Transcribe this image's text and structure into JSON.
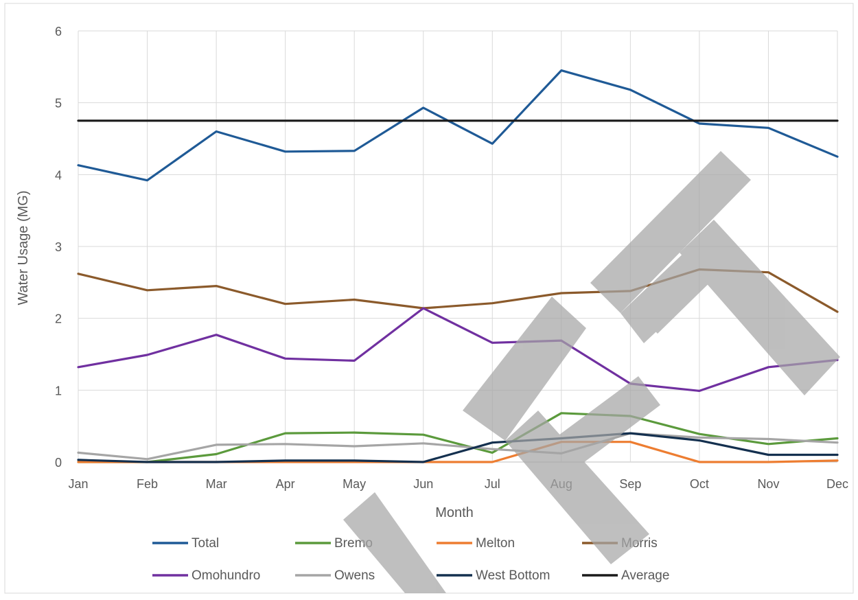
{
  "chart_data": {
    "type": "line",
    "title": "",
    "xlabel": "Month",
    "ylabel": "Water Usage (MG)",
    "categories": [
      "Jan",
      "Feb",
      "Mar",
      "Apr",
      "May",
      "Jun",
      "Jul",
      "Aug",
      "Sep",
      "Oct",
      "Nov",
      "Dec"
    ],
    "ylim": [
      0,
      6
    ],
    "yticks": [
      "0",
      "1",
      "2",
      "3",
      "4",
      "5",
      "6"
    ],
    "grid": true,
    "legend_position": "bottom",
    "watermark": "DRAFT",
    "series": [
      {
        "name": "Total",
        "color": "#1f5a96",
        "values": [
          4.13,
          3.92,
          4.6,
          4.32,
          4.33,
          4.93,
          4.43,
          5.45,
          5.18,
          4.71,
          4.65,
          4.25
        ]
      },
      {
        "name": "Bremo",
        "color": "#5b9a3c",
        "values": [
          0.0,
          0.0,
          0.11,
          0.4,
          0.41,
          0.38,
          0.13,
          0.68,
          0.64,
          0.39,
          0.25,
          0.33
        ]
      },
      {
        "name": "Melton",
        "color": "#ed7d31",
        "values": [
          0.0,
          0.0,
          0.0,
          0.0,
          0.0,
          0.0,
          0.0,
          0.28,
          0.28,
          0.0,
          0.0,
          0.02
        ]
      },
      {
        "name": "Morris",
        "color": "#8b5a2b",
        "values": [
          2.62,
          2.39,
          2.45,
          2.2,
          2.26,
          2.14,
          2.21,
          2.35,
          2.38,
          2.68,
          2.64,
          2.09
        ]
      },
      {
        "name": "Omohundro",
        "color": "#7030a0",
        "values": [
          1.32,
          1.49,
          1.77,
          1.44,
          1.41,
          2.14,
          1.66,
          1.69,
          1.09,
          0.99,
          1.32,
          1.42
        ]
      },
      {
        "name": "Owens",
        "color": "#a5a5a5",
        "values": [
          0.13,
          0.04,
          0.24,
          0.25,
          0.22,
          0.26,
          0.18,
          0.12,
          0.4,
          0.34,
          0.32,
          0.27
        ]
      },
      {
        "name": "West Bottom",
        "color": "#14304f",
        "values": [
          0.03,
          0.0,
          0.0,
          0.02,
          0.02,
          0.0,
          0.27,
          0.33,
          0.4,
          0.3,
          0.1,
          0.1
        ]
      },
      {
        "name": "Average",
        "color": "#1a1a1a",
        "values": [
          4.75,
          4.75,
          4.75,
          4.75,
          4.75,
          4.75,
          4.75,
          4.75,
          4.75,
          4.75,
          4.75,
          4.75
        ]
      }
    ]
  }
}
